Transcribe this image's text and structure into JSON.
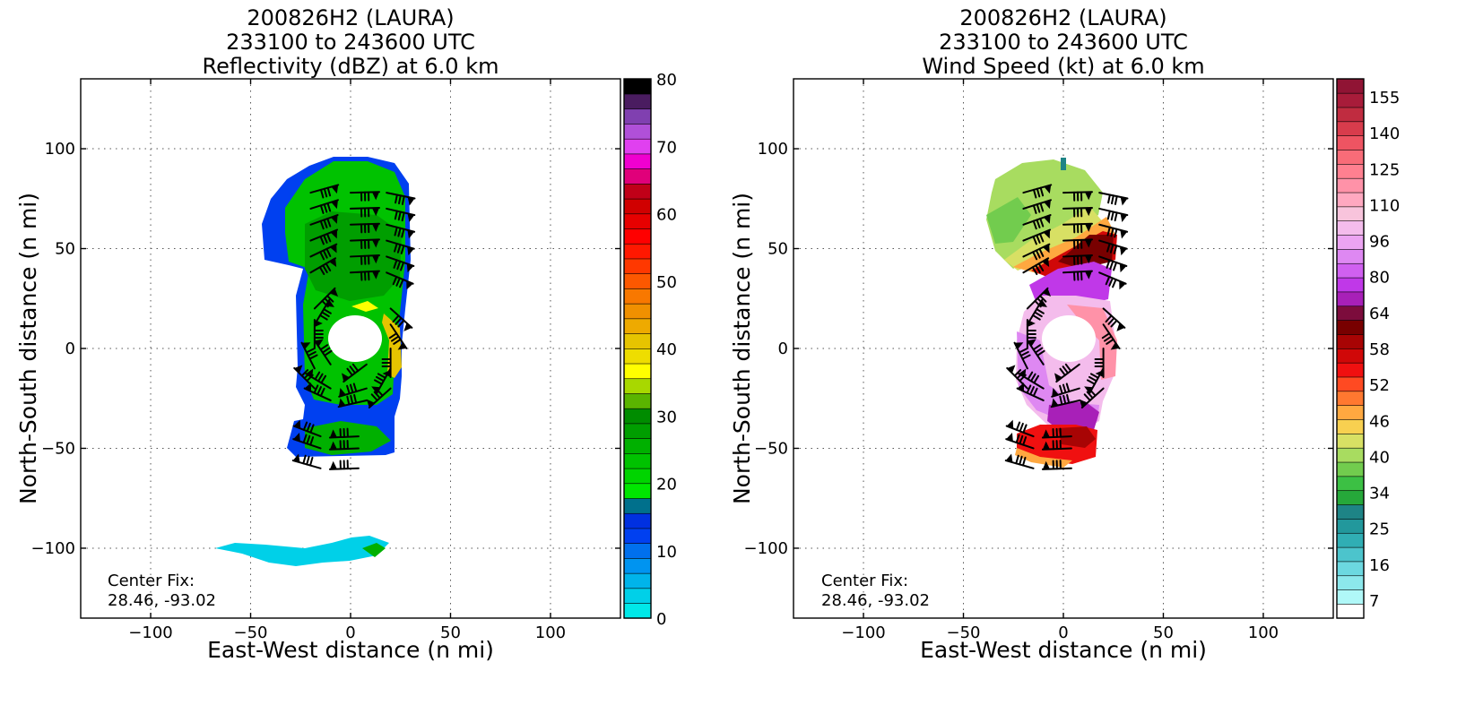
{
  "chart_data": [
    {
      "type": "heatmap",
      "title": [
        "200826H2 (LAURA)",
        "233100 to 243600 UTC",
        "Reflectivity (dBZ) at 6.0 km"
      ],
      "xlabel": "East-West distance (n mi)",
      "ylabel": "North-South distance (n mi)",
      "xlim": [
        -135,
        135
      ],
      "ylim": [
        -135,
        135
      ],
      "xticks": [
        -100,
        -50,
        0,
        50,
        100
      ],
      "yticks": [
        -100,
        -50,
        0,
        50,
        100
      ],
      "grid": true,
      "annotation": [
        "Center Fix:",
        "28.46, -93.02"
      ],
      "colorbar": {
        "label_ticks": [
          0,
          10,
          20,
          30,
          40,
          50,
          60,
          70,
          80
        ],
        "colors": [
          "#00e8e8",
          "#00d0e8",
          "#00b4ea",
          "#0094f0",
          "#0070ee",
          "#0040f0",
          "#0030e0",
          "#00708c",
          "#00e600",
          "#00d400",
          "#00c200",
          "#00b000",
          "#009e00",
          "#008c00",
          "#5ab400",
          "#a8d800",
          "#ffff00",
          "#eedd00",
          "#e6c400",
          "#eeaa00",
          "#f09000",
          "#f87800",
          "#fc5800",
          "#ff3800",
          "#ff1800",
          "#ff0000",
          "#e60000",
          "#d00000",
          "#c00018",
          "#e0007a",
          "#f000d0",
          "#e040f0",
          "#b050d8",
          "#8040b0",
          "#4a1c60",
          "#000000"
        ]
      }
    },
    {
      "type": "heatmap",
      "title": [
        "200826H2 (LAURA)",
        "233100 to 243600 UTC",
        "Wind Speed (kt) at 6.0 km"
      ],
      "xlabel": "East-West distance (n mi)",
      "ylabel": "North-South distance (n mi)",
      "xlim": [
        -135,
        135
      ],
      "ylim": [
        -135,
        135
      ],
      "xticks": [
        -100,
        -50,
        0,
        50,
        100
      ],
      "yticks": [
        -100,
        -50,
        0,
        50,
        100
      ],
      "grid": true,
      "annotation": [
        "Center Fix:",
        "28.46, -93.02"
      ],
      "colorbar": {
        "label_ticks": [
          7,
          16,
          25,
          34,
          40,
          46,
          52,
          58,
          64,
          80,
          96,
          110,
          125,
          140,
          155
        ],
        "colors": [
          "#ffffff",
          "#b0f8f8",
          "#8ce8ec",
          "#6cd8e0",
          "#4cc4cc",
          "#30aeb4",
          "#22989c",
          "#1e8486",
          "#26a83a",
          "#3cc044",
          "#72cc4e",
          "#a8dc60",
          "#d8e064",
          "#f8d050",
          "#ffa840",
          "#ff7830",
          "#ff4a22",
          "#f01010",
          "#d00808",
          "#a80404",
          "#780000",
          "#7c0c3c",
          "#a820b8",
          "#c038e8",
          "#d060f0",
          "#de88f2",
          "#eca4f2",
          "#f4bcec",
          "#f8c4dc",
          "#ffa8c0",
          "#ff92a8",
          "#ff8090",
          "#f86c78",
          "#ee5462",
          "#d83c4c",
          "#c02c40",
          "#a81c3a",
          "#901434"
        ]
      }
    }
  ]
}
